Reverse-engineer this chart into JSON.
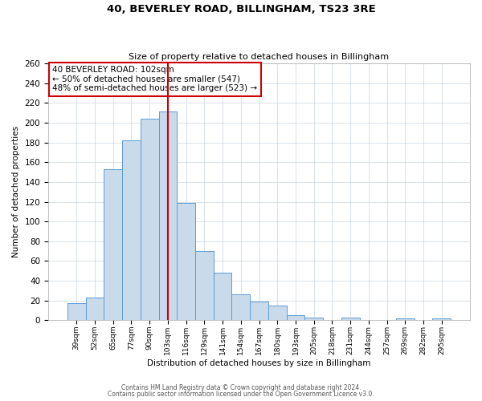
{
  "title": "40, BEVERLEY ROAD, BILLINGHAM, TS23 3RE",
  "subtitle": "Size of property relative to detached houses in Billingham",
  "xlabel": "Distribution of detached houses by size in Billingham",
  "ylabel": "Number of detached properties",
  "categories": [
    "39sqm",
    "52sqm",
    "65sqm",
    "77sqm",
    "90sqm",
    "103sqm",
    "116sqm",
    "129sqm",
    "141sqm",
    "154sqm",
    "167sqm",
    "180sqm",
    "193sqm",
    "205sqm",
    "218sqm",
    "231sqm",
    "244sqm",
    "257sqm",
    "269sqm",
    "282sqm",
    "295sqm"
  ],
  "values": [
    17,
    23,
    153,
    182,
    204,
    211,
    119,
    70,
    48,
    26,
    19,
    15,
    5,
    3,
    0,
    3,
    0,
    0,
    2,
    0,
    2
  ],
  "bar_color_fill": "#c9daea",
  "bar_color_edge": "#5b9bd5",
  "vline_x_index": 5,
  "vline_color": "#cc0000",
  "annotation_title": "40 BEVERLEY ROAD: 102sqm",
  "annotation_line1": "← 50% of detached houses are smaller (547)",
  "annotation_line2": "48% of semi-detached houses are larger (523) →",
  "annotation_box_color": "#cc0000",
  "ylim": [
    0,
    260
  ],
  "yticks": [
    0,
    20,
    40,
    60,
    80,
    100,
    120,
    140,
    160,
    180,
    200,
    220,
    240,
    260
  ],
  "footer1": "Contains HM Land Registry data © Crown copyright and database right 2024.",
  "footer2": "Contains public sector information licensed under the Open Government Licence v3.0.",
  "background_color": "#ffffff",
  "grid_color": "#c8d4e0"
}
